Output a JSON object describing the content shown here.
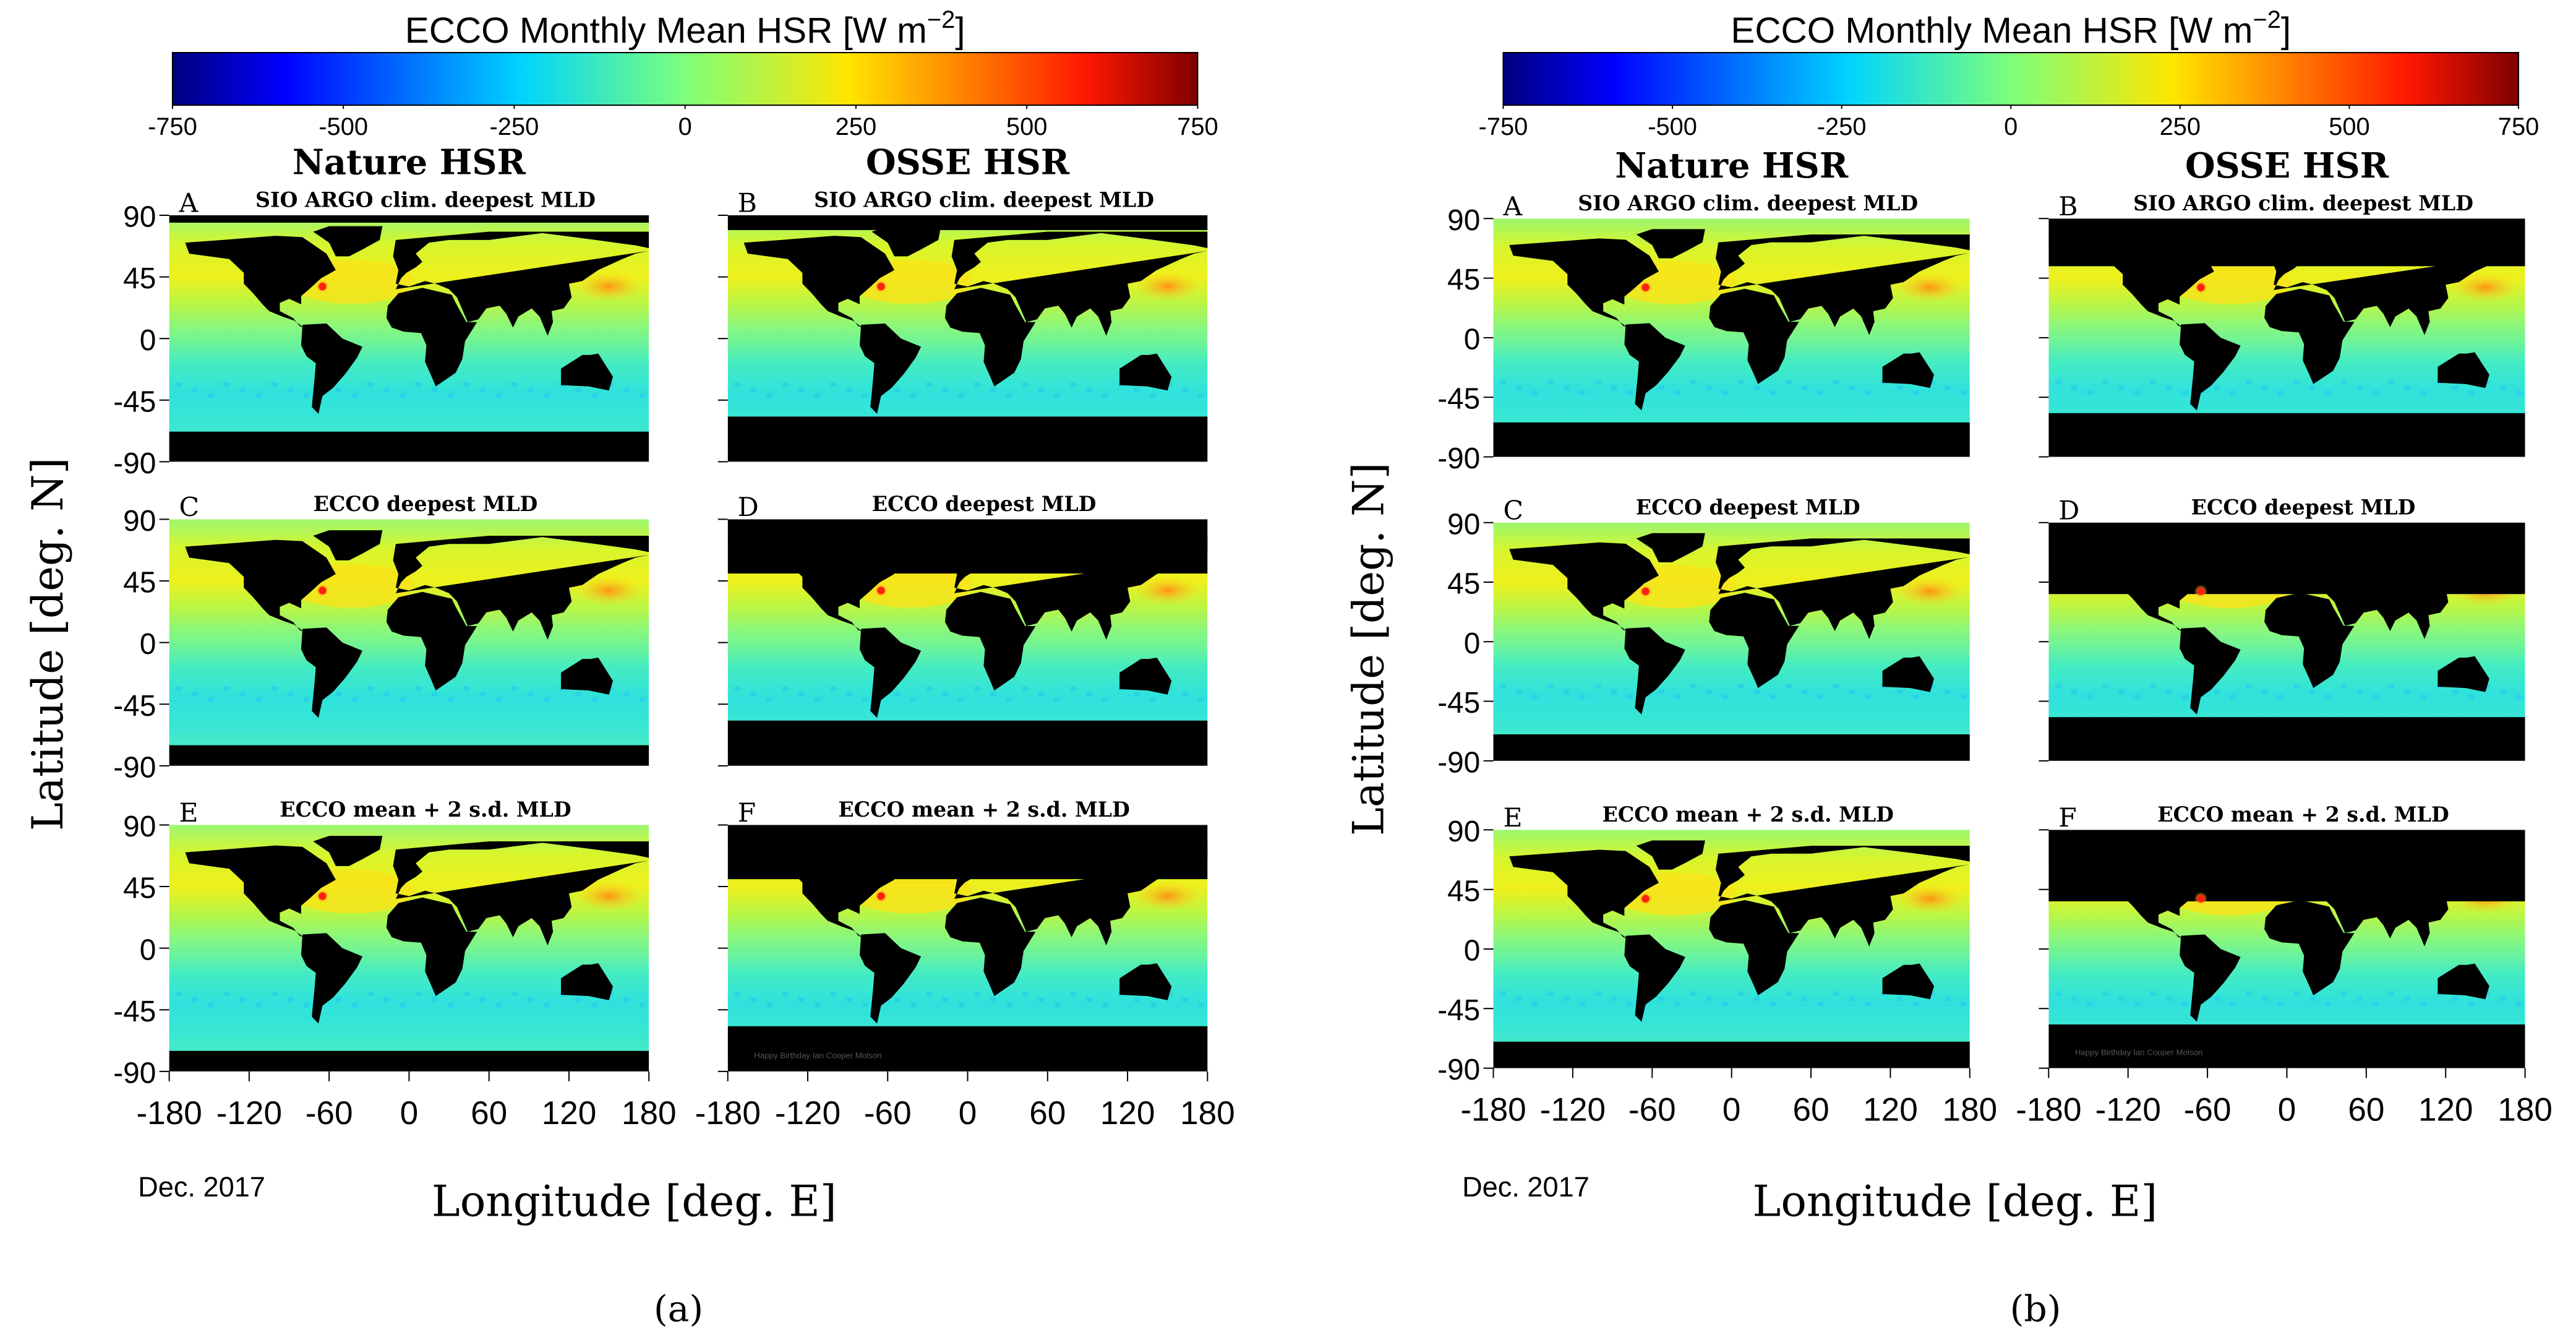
{
  "figure": {
    "panels": [
      {
        "id": "a",
        "caption": "(a)",
        "colorbar": {
          "title_main": "ECCO Monthly Mean HSR [W m",
          "title_sup": "−2",
          "title_end": "]",
          "ticks": [
            "-750",
            "-500",
            "-250",
            "0",
            "250",
            "500",
            "750"
          ]
        },
        "column_titles": [
          "Nature HSR",
          "OSSE HSR"
        ],
        "ylabel": "Latitude [deg. N]",
        "xlabel": "Longitude [deg. E]",
        "date": "Dec. 2017",
        "map_titles": [
          {
            "letter": "A",
            "title": "SIO ARGO clim. deepest MLD"
          },
          {
            "letter": "B",
            "title": "SIO ARGO clim. deepest MLD"
          },
          {
            "letter": "C",
            "title": "ECCO deepest MLD"
          },
          {
            "letter": "D",
            "title": "ECCO deepest MLD"
          },
          {
            "letter": "E",
            "title": "ECCO mean + 2 s.d. MLD"
          },
          {
            "letter": "F",
            "title": "ECCO mean + 2 s.d. MLD"
          }
        ],
        "watermark": "Happy Birthday Ian Cooper Molson"
      },
      {
        "id": "b",
        "caption": "(b)",
        "colorbar": {
          "title_main": "ECCO Monthly Mean HSR [W m",
          "title_sup": "−2",
          "title_end": "]",
          "ticks": [
            "-750",
            "-500",
            "-250",
            "0",
            "250",
            "500",
            "750"
          ]
        },
        "column_titles": [
          "Nature HSR",
          "OSSE HSR"
        ],
        "ylabel": "Latitude [deg. N]",
        "xlabel": "Longitude [deg. E]",
        "date": "Dec. 2017",
        "map_titles": [
          {
            "letter": "A",
            "title": "SIO ARGO clim. deepest MLD"
          },
          {
            "letter": "B",
            "title": "SIO ARGO clim. deepest MLD"
          },
          {
            "letter": "C",
            "title": "ECCO deepest MLD"
          },
          {
            "letter": "D",
            "title": "ECCO deepest MLD"
          },
          {
            "letter": "E",
            "title": "ECCO mean + 2 s.d. MLD"
          },
          {
            "letter": "F",
            "title": "ECCO mean + 2 s.d. MLD"
          }
        ],
        "watermark": "Happy Birthday Ian Cooper Molson"
      }
    ]
  },
  "chart_data": {
    "type": "heatmap",
    "colormap": "jet",
    "colorbar_range": [
      -750,
      750
    ],
    "colorbar_unit": "W m^-2",
    "xlim": [
      -180,
      180
    ],
    "ylim": [
      -90,
      90
    ],
    "x_ticks": [
      "-180",
      "-120",
      "-60",
      "0",
      "60",
      "120",
      "180"
    ],
    "y_ticks": [
      "90",
      "45",
      "0",
      "-45",
      "-90"
    ],
    "land_color": "#000000",
    "hotspot": {
      "lon": -65,
      "lat": 38,
      "value": 500
    },
    "zonal_profile": {
      "lat": [
        80,
        60,
        45,
        38,
        30,
        20,
        10,
        0,
        -10,
        -20,
        -30,
        -40,
        -50,
        -60
      ],
      "value": [
        -60,
        130,
        230,
        260,
        160,
        60,
        20,
        -10,
        -50,
        -110,
        -140,
        -130,
        -110,
        -90
      ]
    },
    "colors": {
      "ocean_warm": "#e8f41a",
      "ocean_mid": "#7cf886",
      "ocean_cool": "#2ee4dd",
      "hotspot": "#ff2a10"
    }
  }
}
